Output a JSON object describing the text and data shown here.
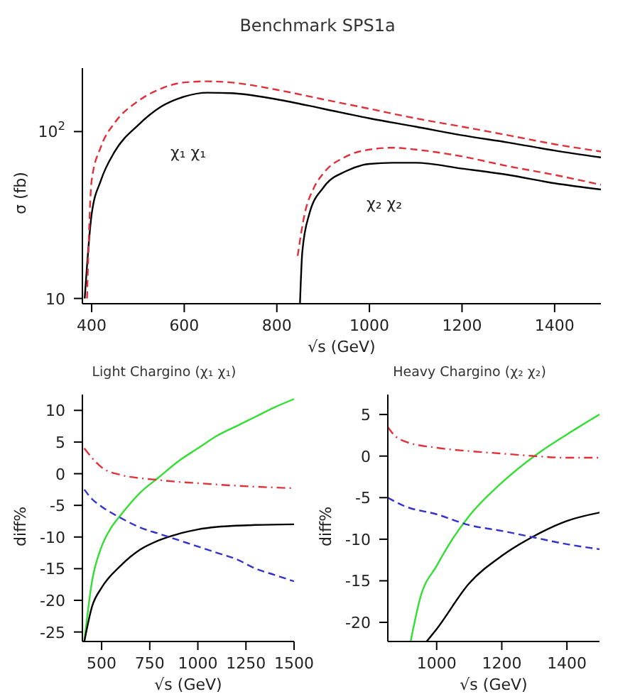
{
  "chart_data": [
    {
      "type": "line",
      "title": "Benchmark SPS1a",
      "xlabel": "√s (GeV)",
      "ylabel": "σ (fb)",
      "log": "y",
      "xlim": [
        380,
        1500
      ],
      "xticks": [
        400,
        600,
        800,
        1000,
        1200,
        1400
      ],
      "ylim": [
        9.3,
        240
      ],
      "yticks": [
        10,
        {
          "value": 100,
          "label": "10$^{2}$"
        }
      ],
      "series": [
        {
          "color": "#000000",
          "line_style": "solid",
          "x": [
            385,
            400,
            420,
            450,
            500,
            550,
            600,
            650,
            700,
            800,
            900,
            1000,
            1100,
            1200,
            1300,
            1400,
            1500
          ],
          "values": [
            10,
            32,
            51,
            76,
            109,
            141,
            162,
            171,
            170,
            156,
            137,
            120,
            107,
            95,
            86,
            77,
            70
          ]
        },
        {
          "color": "#e0303a",
          "line_style": "dashed",
          "x": [
            390,
            400,
            420,
            450,
            500,
            550,
            600,
            650,
            700,
            800,
            900,
            1000,
            1100,
            1200,
            1300,
            1400,
            1500
          ],
          "values": [
            10,
            51,
            81,
            113,
            152,
            181,
            197,
            200,
            197,
            178,
            156,
            137,
            120,
            107,
            95,
            84,
            76
          ]
        },
        {
          "color": "#000000",
          "line_style": "solid",
          "x": [
            850,
            855,
            870,
            900,
            950,
            1000,
            1050,
            1100,
            1200,
            1300,
            1400,
            1500
          ],
          "values": [
            9.3,
            19,
            32,
            46,
            58,
            64,
            65,
            65,
            60,
            55,
            49,
            45
          ]
        },
        {
          "color": "#e0303a",
          "line_style": "dashed",
          "x": [
            845,
            860,
            880,
            900,
            950,
            1000,
            1050,
            1100,
            1200,
            1300,
            1400,
            1500
          ],
          "values": [
            18,
            32,
            46,
            56,
            71,
            78,
            80,
            78,
            71,
            62,
            55,
            48
          ]
        }
      ],
      "annotations": [
        "χ₁ χ₁",
        "χ₂ χ₂"
      ]
    },
    {
      "type": "line",
      "title": "Light Chargino (χ₁ χ₁)",
      "xlabel": "√s (GeV)",
      "ylabel": "diff%",
      "xlim": [
        400,
        1500
      ],
      "xticks": [
        500,
        750,
        1000,
        1250,
        1500
      ],
      "ylim": [
        -26.5,
        12.5
      ],
      "yticks": [
        10,
        5,
        0,
        -5,
        -10,
        -15,
        -20,
        -25
      ],
      "series": [
        {
          "color": "#33dd33",
          "line_style": "solid",
          "x": [
            410,
            450,
            500,
            550,
            600,
            700,
            800,
            900,
            1000,
            1100,
            1200,
            1300,
            1400,
            1500
          ],
          "values": [
            -26.5,
            -17,
            -11.5,
            -8.5,
            -6.5,
            -3,
            -0.5,
            2,
            4,
            6,
            7.5,
            9,
            10.5,
            11.8
          ]
        },
        {
          "color": "#000000",
          "line_style": "solid",
          "x": [
            410,
            450,
            500,
            600,
            700,
            800,
            900,
            1000,
            1100,
            1200,
            1300,
            1500
          ],
          "values": [
            -26.5,
            -21,
            -18,
            -14.5,
            -12,
            -10.5,
            -9.5,
            -8.8,
            -8.4,
            -8.2,
            -8.1,
            -8
          ]
        },
        {
          "color": "#e0303a",
          "line_style": "dashdot",
          "x": [
            410,
            450,
            500,
            600,
            700,
            800,
            900,
            1000,
            1200,
            1500
          ],
          "values": [
            4,
            2.5,
            1,
            -0.2,
            -0.7,
            -1,
            -1.3,
            -1.5,
            -1.9,
            -2.3
          ]
        },
        {
          "color": "#3333cc",
          "line_style": "dashed",
          "x": [
            410,
            450,
            500,
            600,
            700,
            800,
            900,
            1000,
            1100,
            1200,
            1300,
            1400,
            1500
          ],
          "values": [
            -2.5,
            -4,
            -5.2,
            -7,
            -8.5,
            -9.5,
            -10.5,
            -11.5,
            -12.5,
            -13.5,
            -15,
            -16,
            -17
          ]
        }
      ]
    },
    {
      "type": "line",
      "title": "Heavy Chargino (χ₂ χ₂)",
      "xlabel": "√s (GeV)",
      "ylabel": "diff%",
      "xlim": [
        850,
        1500
      ],
      "xticks": [
        1000,
        1200,
        1400
      ],
      "ylim": [
        -22.3,
        7.4
      ],
      "yticks": [
        5,
        0,
        -5,
        -10,
        -15,
        -20
      ],
      "series": [
        {
          "color": "#33dd33",
          "line_style": "solid",
          "x": [
            920,
            950,
            1000,
            1050,
            1100,
            1200,
            1300,
            1400,
            1500
          ],
          "values": [
            -22.3,
            -17,
            -13.2,
            -9.9,
            -7.2,
            -3.2,
            0,
            2.6,
            5
          ]
        },
        {
          "color": "#000000",
          "line_style": "solid",
          "x": [
            969,
            1000,
            1100,
            1200,
            1300,
            1400,
            1500
          ],
          "values": [
            -22.3,
            -20.8,
            -15.3,
            -12,
            -9.6,
            -7.8,
            -6.8
          ]
        },
        {
          "color": "#e0303a",
          "line_style": "dashdot",
          "x": [
            850,
            870,
            900,
            1000,
            1100,
            1200,
            1300,
            1400,
            1500
          ],
          "values": [
            3.5,
            2.5,
            1.8,
            1,
            0.6,
            0.3,
            0,
            -0.2,
            -0.2
          ]
        },
        {
          "color": "#3333cc",
          "line_style": "dashed",
          "x": [
            850,
            900,
            1000,
            1100,
            1200,
            1300,
            1400,
            1500
          ],
          "values": [
            -5,
            -6,
            -7,
            -8.3,
            -9,
            -9.8,
            -10.6,
            -11.2
          ]
        }
      ]
    }
  ]
}
